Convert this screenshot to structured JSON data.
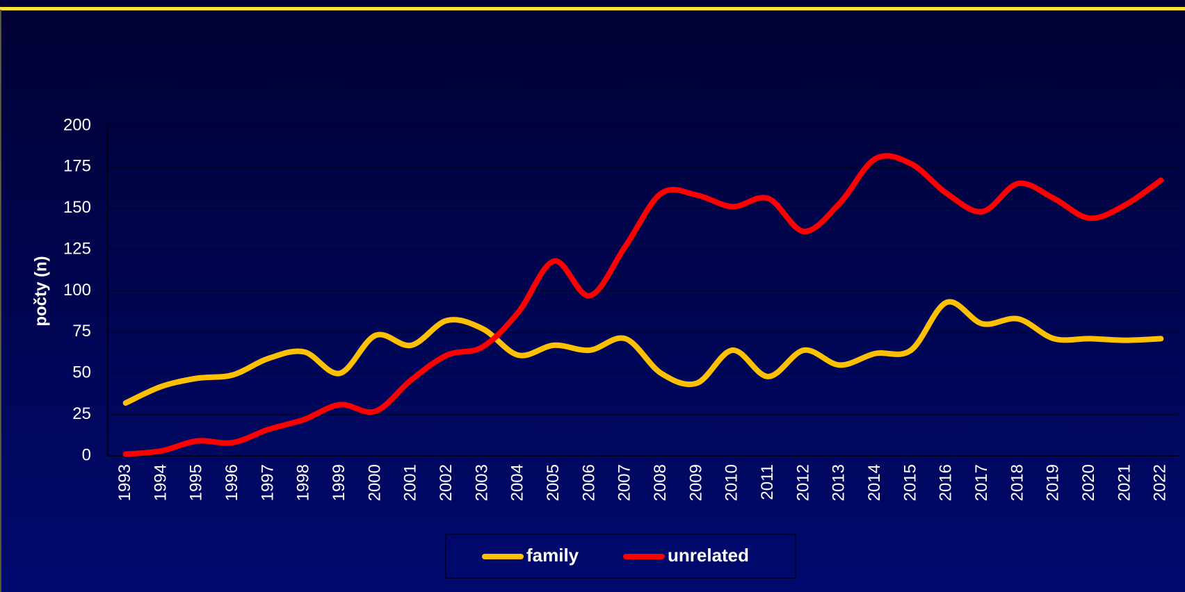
{
  "chart_data": {
    "type": "line",
    "ylabel": "počty (n)",
    "categories": [
      "1993",
      "1994",
      "1995",
      "1996",
      "1997",
      "1998",
      "1999",
      "2000",
      "2001",
      "2002",
      "2003",
      "2004",
      "2005",
      "2006",
      "2007",
      "2008",
      "2009",
      "2010",
      "2011",
      "2012",
      "2013",
      "2014",
      "2015",
      "2016",
      "2017",
      "2018",
      "2019",
      "2020",
      "2021",
      "2022"
    ],
    "series": [
      {
        "name": "family",
        "color": "#ffc000",
        "values": [
          32,
          42,
          47,
          49,
          59,
          63,
          50,
          73,
          67,
          82,
          77,
          61,
          67,
          64,
          71,
          50,
          44,
          64,
          48,
          64,
          55,
          62,
          64,
          93,
          80,
          83,
          71,
          71,
          70,
          71
        ]
      },
      {
        "name": "unrelated",
        "color": "#ff0000",
        "values": [
          1,
          3,
          9,
          8,
          16,
          22,
          31,
          27,
          46,
          61,
          66,
          87,
          118,
          97,
          127,
          159,
          158,
          151,
          156,
          136,
          153,
          180,
          177,
          159,
          148,
          165,
          156,
          144,
          152,
          167
        ]
      }
    ],
    "ylim": [
      0,
      200
    ],
    "yticks": [
      0,
      25,
      50,
      75,
      100,
      125,
      150,
      175,
      200
    ],
    "grid": true,
    "smooth": true,
    "legend": "bottom"
  }
}
